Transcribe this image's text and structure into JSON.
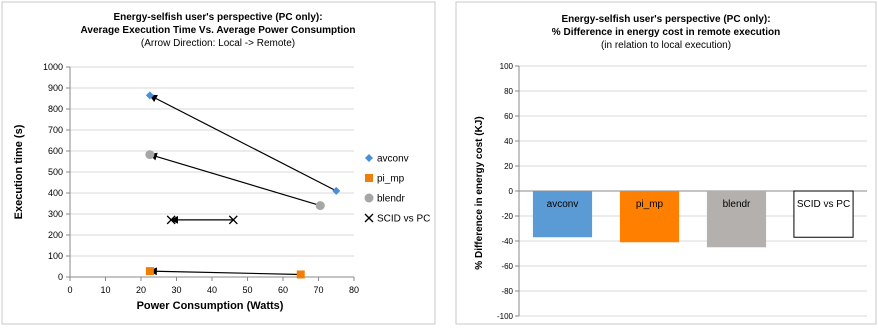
{
  "chart_data": [
    {
      "type": "scatter",
      "title_lines": [
        "Energy-selfish user's perspective (PC only):",
        "Average Execution Time Vs. Average Power Consumption"
      ],
      "subtitle": "(Arrow Direction: Local -> Remote)",
      "xlabel": "Power Consumption (Watts)",
      "ylabel": "Execution time (s)",
      "xlim": [
        0,
        80
      ],
      "ylim": [
        0,
        1000
      ],
      "xticks": [
        "0",
        "10",
        "20",
        "30",
        "40",
        "50",
        "60",
        "70",
        "80"
      ],
      "yticks": [
        "0",
        "100",
        "200",
        "300",
        "400",
        "500",
        "600",
        "700",
        "800",
        "900",
        "1000"
      ],
      "grid": "horizontal",
      "legend_position": "right",
      "arrow_direction": "local to remote",
      "series": [
        {
          "name": "avconv",
          "color": "#4a90d9",
          "marker": "diamond",
          "points": [
            [
              22.5,
              865
            ],
            [
              75,
              410
            ]
          ],
          "arrow_from": [
            75,
            410
          ],
          "arrow_to": [
            22.5,
            865
          ]
        },
        {
          "name": "pi_mp",
          "color": "#f07f09",
          "marker": "square",
          "points": [
            [
              22.5,
              28
            ],
            [
              65,
              12
            ]
          ],
          "arrow_from": [
            65,
            12
          ],
          "arrow_to": [
            22.5,
            28
          ]
        },
        {
          "name": "blendr",
          "color": "#a6a6a6",
          "marker": "circle",
          "points": [
            [
              22.5,
              583
            ],
            [
              70.5,
              340
            ]
          ],
          "arrow_from": [
            70.5,
            340
          ],
          "arrow_to": [
            22.5,
            583
          ]
        },
        {
          "name": "SCID vs PC",
          "color": "#000000",
          "marker": "x",
          "points": [
            [
              28.5,
              272
            ],
            [
              46,
              272
            ]
          ],
          "arrow_from": [
            46,
            272
          ],
          "arrow_to": [
            28.5,
            272
          ]
        }
      ]
    },
    {
      "type": "bar",
      "title_lines": [
        "Energy-selfish user's perspective (PC only):",
        "% Difference in energy cost in remote execution"
      ],
      "subtitle": "(in relation to local execution)",
      "ylabel": "% Difference in energy cost (KJ)",
      "ylim": [
        -100,
        100
      ],
      "yticks": [
        "100",
        "80",
        "60",
        "40",
        "20",
        "0",
        "-20",
        "-40",
        "-60",
        "-80",
        "-100"
      ],
      "grid": "horizontal",
      "categories": [
        "avconv",
        "pi_mp",
        "blendr",
        "SCID vs PC"
      ],
      "values": [
        -37,
        -41,
        -45,
        -37
      ],
      "colors": [
        "#5b9bd5",
        "#ff7f00",
        "#b4b0ae",
        "#ffffff"
      ],
      "bar_labels": [
        "avconv",
        "pi_mp",
        "blendr",
        "SCID vs PC"
      ]
    }
  ]
}
